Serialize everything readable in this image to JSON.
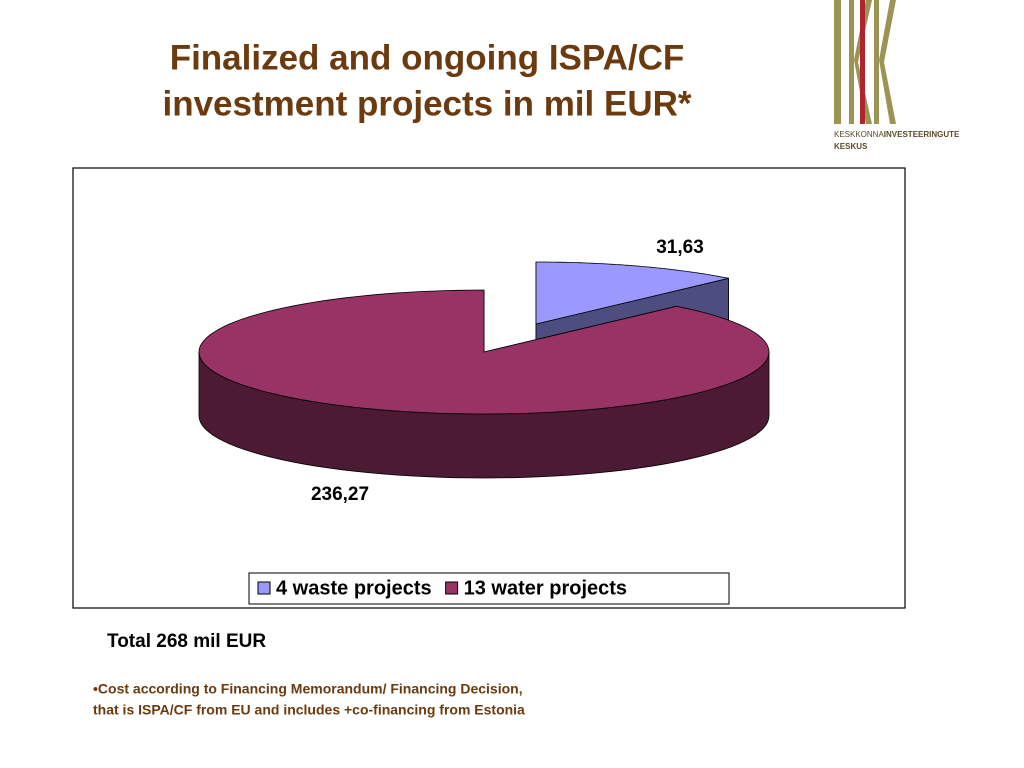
{
  "title": [
    "Finalized and ongoing ISPA/CF",
    "investment projects in mil EUR*"
  ],
  "logo": {
    "line1_regular": "KESKKONNA",
    "line1_bold": "INVESTEERINGUTE",
    "line2": "KESKUS"
  },
  "chart_data": {
    "type": "pie",
    "categories": [
      "4 waste projects",
      "13 water projects"
    ],
    "values": [
      31.63,
      236.27
    ],
    "value_labels": [
      "31,63",
      "236,27"
    ],
    "colors": [
      "#9999ff",
      "#993366"
    ],
    "legend": "bottom"
  },
  "total": "Total 268 mil EUR",
  "footnote": [
    "•Cost according to Financing Memorandum/ Financing Decision,",
    "that is ISPA/CF from EU and includes +co-financing from Estonia"
  ]
}
